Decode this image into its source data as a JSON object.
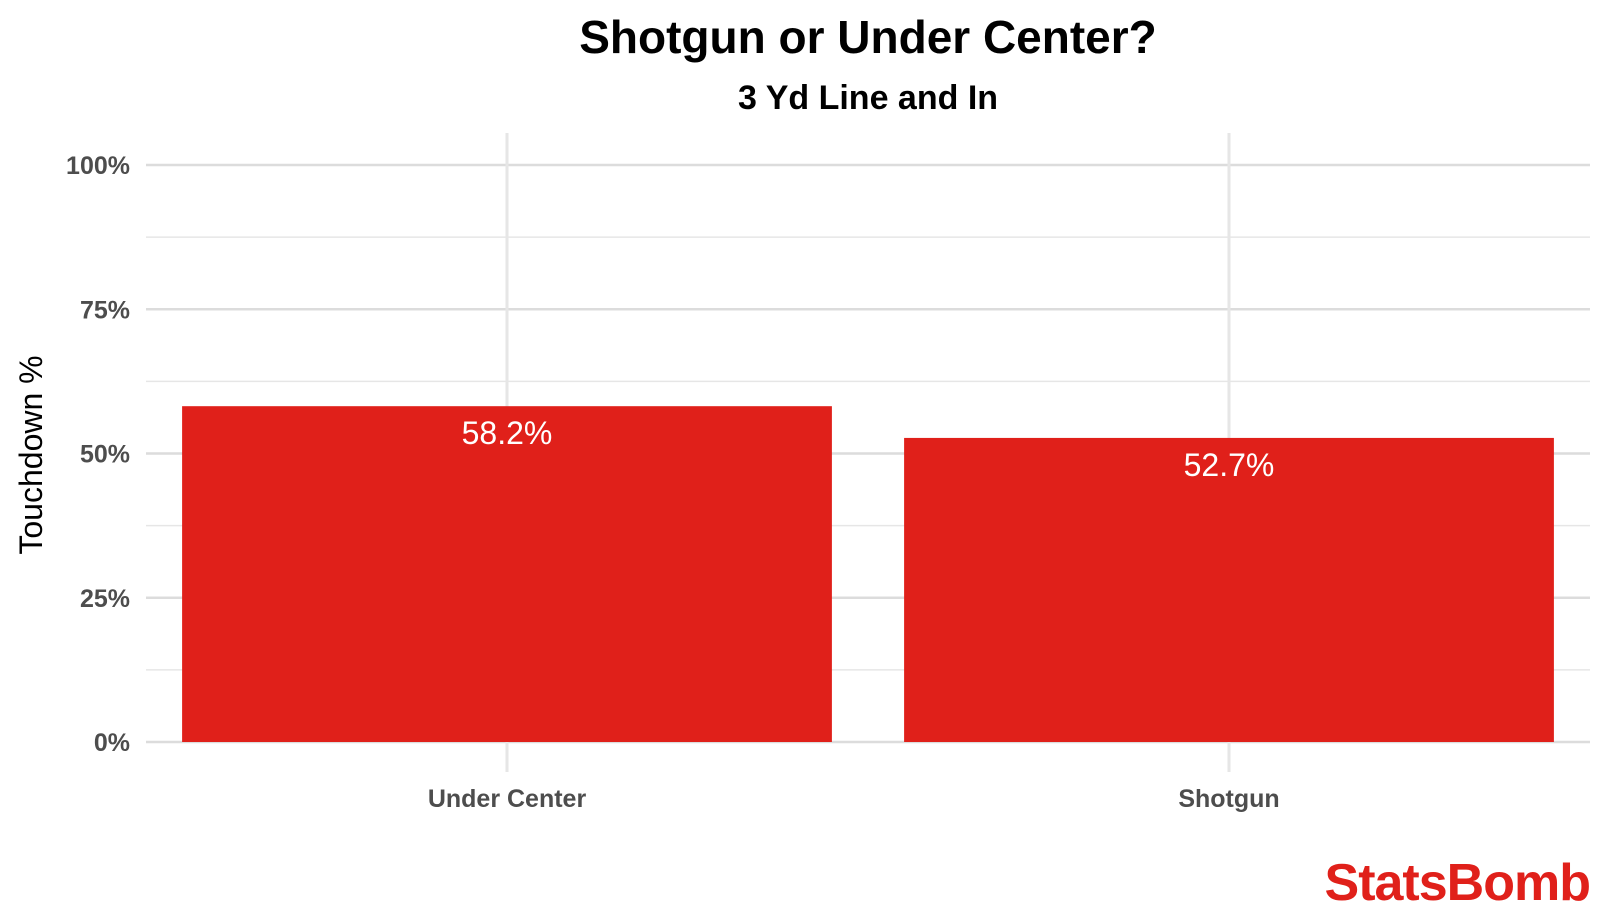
{
  "chart_data": {
    "type": "bar",
    "title": "Shotgun or Under Center?",
    "subtitle": "3 Yd Line and In",
    "xlabel": "",
    "ylabel": "Touchdown %",
    "categories": [
      "Under Center",
      "Shotgun"
    ],
    "values": [
      58.2,
      52.7
    ],
    "data_labels": [
      "58.2%",
      "52.7%"
    ],
    "ylim": [
      0,
      100
    ],
    "yticks": [
      0,
      25,
      50,
      75,
      100
    ],
    "ytick_labels": [
      "0%",
      "25%",
      "50%",
      "75%",
      "100%"
    ],
    "grid": true,
    "legend": "none",
    "bar_color": "#e0201a"
  },
  "brand": {
    "name": "StatsBomb",
    "color": "#e0201a"
  }
}
